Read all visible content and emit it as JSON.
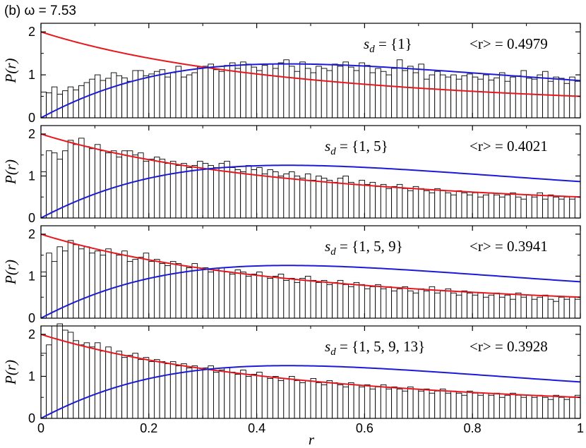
{
  "figure_label": "(b) ω = 7.53",
  "xlabel": "r",
  "ylabel": "P(r)",
  "x_ticks": [
    "0",
    "0.2",
    "0.4",
    "0.6",
    "0.8",
    "1"
  ],
  "y_ticks": [
    "0",
    "1",
    "2"
  ],
  "colors": {
    "poisson": "#e8171d",
    "goe": "#1b1bd6",
    "bars": "#000000"
  },
  "chart_data": [
    {
      "type": "bar",
      "label_sd": "{1}",
      "label_mean": "<r> = 0.4979",
      "xlim": [
        0,
        1
      ],
      "ylim": [
        0,
        2.2
      ],
      "bin_width": 0.01,
      "values": [
        0.6,
        0.58,
        0.72,
        0.55,
        0.63,
        0.72,
        0.65,
        0.75,
        0.82,
        0.9,
        1.0,
        0.87,
        0.92,
        1.05,
        0.98,
        0.93,
        0.85,
        1.1,
        1.1,
        0.98,
        1.02,
        1.08,
        1.12,
        0.95,
        1.05,
        1.2,
        0.95,
        1.0,
        1.05,
        1.18,
        1.2,
        1.25,
        1.12,
        1.08,
        1.22,
        1.28,
        1.15,
        1.3,
        1.25,
        1.18,
        1.1,
        1.22,
        1.25,
        1.15,
        1.28,
        1.35,
        1.2,
        1.08,
        1.3,
        1.15,
        1.05,
        1.2,
        1.15,
        1.1,
        1.25,
        1.2,
        1.3,
        1.18,
        1.1,
        1.28,
        1.22,
        1.05,
        1.15,
        1.08,
        1.0,
        1.15,
        1.35,
        1.1,
        1.2,
        1.05,
        1.25,
        0.9,
        1.0,
        1.08,
        1.0,
        0.95,
        1.0,
        0.9,
        0.98,
        1.02,
        0.95,
        0.9,
        1.0,
        0.88,
        0.93,
        1.05,
        0.85,
        0.95,
        0.98,
        1.1,
        0.92,
        0.9,
        1.0,
        1.08,
        0.85,
        0.95,
        0.92,
        0.8,
        0.95,
        0.85
      ],
      "poisson_curve": "2/(1+r)^2",
      "goe_curve": "(27/4)(r+r^2)/(1+r+r^2)^(5/2)"
    },
    {
      "type": "bar",
      "label_sd": "{1, 5}",
      "label_mean": "<r> = 0.4021",
      "xlim": [
        0,
        1
      ],
      "ylim": [
        0,
        2.2
      ],
      "bin_width": 0.01,
      "values": [
        1.1,
        1.6,
        1.55,
        1.4,
        1.6,
        1.85,
        1.75,
        1.9,
        1.7,
        1.65,
        1.75,
        1.6,
        1.55,
        1.6,
        1.45,
        1.6,
        1.6,
        1.5,
        1.55,
        1.35,
        1.4,
        1.45,
        1.4,
        1.3,
        1.35,
        1.25,
        1.3,
        1.2,
        1.25,
        1.35,
        1.3,
        1.25,
        1.2,
        1.3,
        1.35,
        1.2,
        1.15,
        1.1,
        1.25,
        1.15,
        1.2,
        1.05,
        1.15,
        1.1,
        1.0,
        1.05,
        1.1,
        1.0,
        0.95,
        1.05,
        0.9,
        1.0,
        0.95,
        0.9,
        0.85,
        0.95,
        1.0,
        0.85,
        0.8,
        0.9,
        0.8,
        0.85,
        0.75,
        0.8,
        0.7,
        0.75,
        0.8,
        0.7,
        0.65,
        0.75,
        0.7,
        0.65,
        0.6,
        0.7,
        0.65,
        0.6,
        0.55,
        0.65,
        0.6,
        0.55,
        0.6,
        0.5,
        0.55,
        0.6,
        0.55,
        0.5,
        0.55,
        0.6,
        0.5,
        0.45,
        0.55,
        0.5,
        0.6,
        0.45,
        0.55,
        0.5,
        0.45,
        0.5,
        0.45,
        0.5
      ],
      "poisson_curve": "2/(1+r)^2",
      "goe_curve": "(27/4)(r+r^2)/(1+r+r^2)^(5/2)"
    },
    {
      "type": "bar",
      "label_sd": "{1, 5, 9}",
      "label_mean": "<r> = 0.3941",
      "xlim": [
        0,
        1
      ],
      "ylim": [
        0,
        2.2
      ],
      "bin_width": 0.01,
      "values": [
        1.1,
        1.55,
        1.35,
        1.7,
        1.6,
        1.85,
        1.75,
        1.65,
        1.7,
        1.55,
        1.6,
        1.5,
        1.65,
        1.55,
        1.5,
        1.6,
        1.35,
        1.4,
        1.45,
        1.55,
        1.35,
        1.4,
        1.3,
        1.25,
        1.35,
        1.3,
        1.25,
        1.2,
        1.3,
        1.15,
        1.2,
        1.1,
        1.15,
        1.2,
        1.1,
        1.05,
        1.15,
        1.1,
        1.0,
        1.05,
        1.1,
        1.0,
        0.95,
        1.0,
        1.05,
        0.9,
        0.95,
        0.85,
        0.95,
        1.0,
        0.9,
        0.85,
        0.9,
        0.8,
        0.85,
        0.9,
        0.8,
        0.75,
        0.85,
        0.8,
        0.7,
        0.75,
        0.8,
        0.7,
        0.75,
        0.65,
        0.7,
        0.75,
        0.65,
        0.6,
        0.7,
        0.65,
        0.75,
        0.6,
        0.65,
        0.7,
        0.6,
        0.55,
        0.65,
        0.6,
        0.55,
        0.6,
        0.5,
        0.55,
        0.6,
        0.5,
        0.55,
        0.45,
        0.6,
        0.5,
        0.55,
        0.45,
        0.5,
        0.55,
        0.45,
        0.4,
        0.5,
        0.45,
        0.5,
        0.45
      ],
      "poisson_curve": "2/(1+r)^2",
      "goe_curve": "(27/4)(r+r^2)/(1+r+r^2)^(5/2)"
    },
    {
      "type": "bar",
      "label_sd": "{1, 5, 9, 13}",
      "label_mean": "<r> = 0.3928",
      "xlim": [
        0,
        1
      ],
      "ylim": [
        0,
        2.2
      ],
      "bin_width": 0.01,
      "values": [
        1.55,
        1.75,
        2.2,
        2.25,
        2.1,
        2.05,
        1.85,
        1.75,
        1.8,
        1.7,
        1.8,
        1.6,
        1.7,
        1.55,
        1.6,
        1.45,
        1.5,
        1.55,
        1.4,
        1.45,
        1.35,
        1.4,
        1.35,
        1.3,
        1.35,
        1.25,
        1.3,
        1.2,
        1.25,
        1.15,
        1.2,
        1.25,
        1.1,
        1.15,
        1.2,
        1.1,
        1.05,
        1.15,
        1.0,
        1.05,
        1.1,
        1.0,
        0.95,
        1.0,
        0.9,
        0.95,
        1.0,
        0.9,
        0.85,
        0.9,
        0.95,
        0.85,
        0.8,
        0.9,
        0.85,
        0.8,
        0.75,
        0.85,
        0.8,
        0.75,
        0.8,
        0.7,
        0.75,
        0.8,
        0.7,
        0.75,
        0.7,
        0.65,
        0.75,
        0.7,
        0.65,
        0.7,
        0.6,
        0.65,
        0.7,
        0.6,
        0.65,
        0.6,
        0.55,
        0.65,
        0.6,
        0.55,
        0.6,
        0.55,
        0.6,
        0.5,
        0.55,
        0.6,
        0.55,
        0.5,
        0.55,
        0.5,
        0.55,
        0.5,
        0.45,
        0.55,
        0.5,
        0.45,
        0.5,
        0.55
      ],
      "poisson_curve": "2/(1+r)^2",
      "goe_curve": "(27/4)(r+r^2)/(1+r+r^2)^(5/2)"
    }
  ]
}
